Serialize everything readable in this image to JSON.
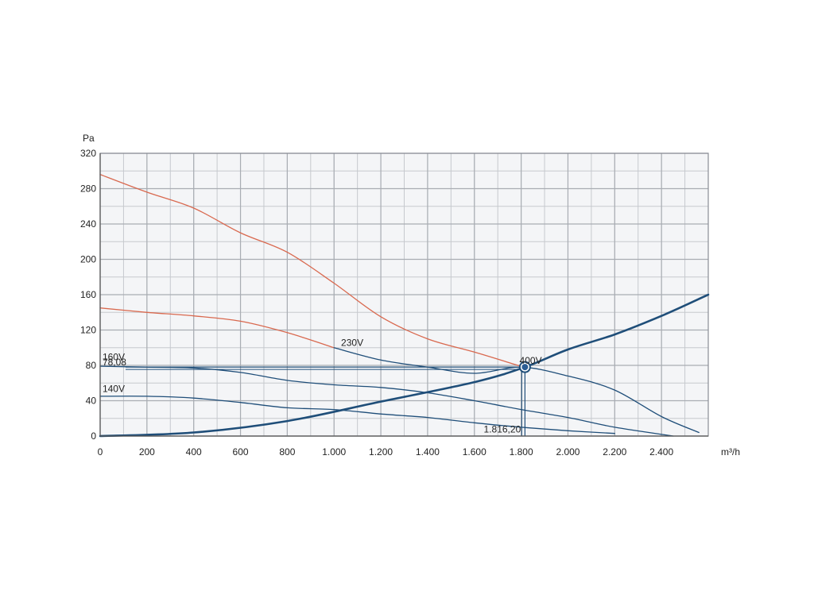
{
  "chart_data": {
    "type": "line",
    "title": "",
    "xlabel": "m³/h",
    "ylabel": "Pa",
    "xlim": [
      0,
      2600
    ],
    "ylim": [
      0,
      320
    ],
    "grid": true,
    "x_ticks": [
      {
        "value": 0,
        "label": "0"
      },
      {
        "value": 200,
        "label": "200"
      },
      {
        "value": 400,
        "label": "400"
      },
      {
        "value": 600,
        "label": "600"
      },
      {
        "value": 800,
        "label": "800"
      },
      {
        "value": 1000,
        "label": "1.000"
      },
      {
        "value": 1200,
        "label": "1.200"
      },
      {
        "value": 1400,
        "label": "1.400"
      },
      {
        "value": 1600,
        "label": "1.600"
      },
      {
        "value": 1800,
        "label": "1.800"
      },
      {
        "value": 2000,
        "label": "2.000"
      },
      {
        "value": 2200,
        "label": "2.200"
      },
      {
        "value": 2400,
        "label": "2.400"
      }
    ],
    "y_ticks": [
      {
        "value": 0,
        "label": "0"
      },
      {
        "value": 40,
        "label": "40"
      },
      {
        "value": 80,
        "label": "80"
      },
      {
        "value": 120,
        "label": "120"
      },
      {
        "value": 160,
        "label": "160"
      },
      {
        "value": 200,
        "label": "200"
      },
      {
        "value": 240,
        "label": "240"
      },
      {
        "value": 280,
        "label": "280"
      },
      {
        "value": 320,
        "label": "320"
      }
    ],
    "series": [
      {
        "name": "400V",
        "color": "#d9694f",
        "points": [
          [
            0,
            296
          ],
          [
            200,
            276
          ],
          [
            400,
            258
          ],
          [
            600,
            230
          ],
          [
            800,
            208
          ],
          [
            1000,
            173
          ],
          [
            1200,
            135
          ],
          [
            1400,
            110
          ],
          [
            1600,
            95
          ],
          [
            1810,
            78
          ]
        ]
      },
      {
        "name": "230V",
        "color": "#d9694f",
        "points": [
          [
            0,
            145
          ],
          [
            200,
            140
          ],
          [
            400,
            136
          ],
          [
            600,
            130
          ],
          [
            800,
            117
          ],
          [
            1000,
            100
          ]
        ]
      },
      {
        "name": "",
        "color": "#1f4e79",
        "points": [
          [
            1000,
            100
          ],
          [
            1200,
            86
          ],
          [
            1400,
            78
          ],
          [
            1600,
            71
          ],
          [
            1800,
            78
          ],
          [
            2000,
            68
          ],
          [
            2200,
            52
          ],
          [
            2400,
            22
          ],
          [
            2560,
            4
          ]
        ]
      },
      {
        "name": "160V",
        "color": "#1f4e79",
        "points": [
          [
            0,
            79
          ],
          [
            200,
            78
          ],
          [
            400,
            77
          ],
          [
            600,
            72
          ],
          [
            800,
            63
          ],
          [
            1000,
            58
          ],
          [
            1200,
            55
          ],
          [
            1400,
            49
          ],
          [
            1600,
            40
          ],
          [
            1800,
            30
          ],
          [
            2000,
            21
          ],
          [
            2200,
            10
          ],
          [
            2450,
            0
          ]
        ]
      },
      {
        "name": "140V",
        "color": "#1f4e79",
        "points": [
          [
            0,
            45
          ],
          [
            200,
            45
          ],
          [
            400,
            43
          ],
          [
            600,
            38
          ],
          [
            800,
            32
          ],
          [
            1000,
            30
          ],
          [
            1200,
            25
          ],
          [
            1400,
            21
          ],
          [
            1600,
            15
          ],
          [
            1800,
            10
          ],
          [
            2000,
            6
          ],
          [
            2200,
            3
          ]
        ]
      },
      {
        "name": "",
        "color": "#1f4e79",
        "points": [
          [
            0,
            0
          ],
          [
            400,
            4
          ],
          [
            800,
            17
          ],
          [
            1200,
            39
          ],
          [
            1600,
            61
          ],
          [
            1816,
            78
          ],
          [
            2000,
            98
          ],
          [
            2200,
            115
          ],
          [
            2400,
            136
          ],
          [
            2600,
            160
          ]
        ]
      }
    ],
    "annotations": [
      {
        "text": "230V",
        "x": 1030,
        "y": 102
      },
      {
        "text": "400V",
        "x": 1793,
        "y": 82
      },
      {
        "text": "160V",
        "x": 10,
        "y": 86
      },
      {
        "text": "78,08",
        "x": 10,
        "y": 80
      },
      {
        "text": "140V",
        "x": 10,
        "y": 50
      },
      {
        "text": "1.816,20",
        "x": 1640,
        "y": 4
      }
    ],
    "operating_point": {
      "x": 1816.2,
      "y": 78.08
    }
  }
}
